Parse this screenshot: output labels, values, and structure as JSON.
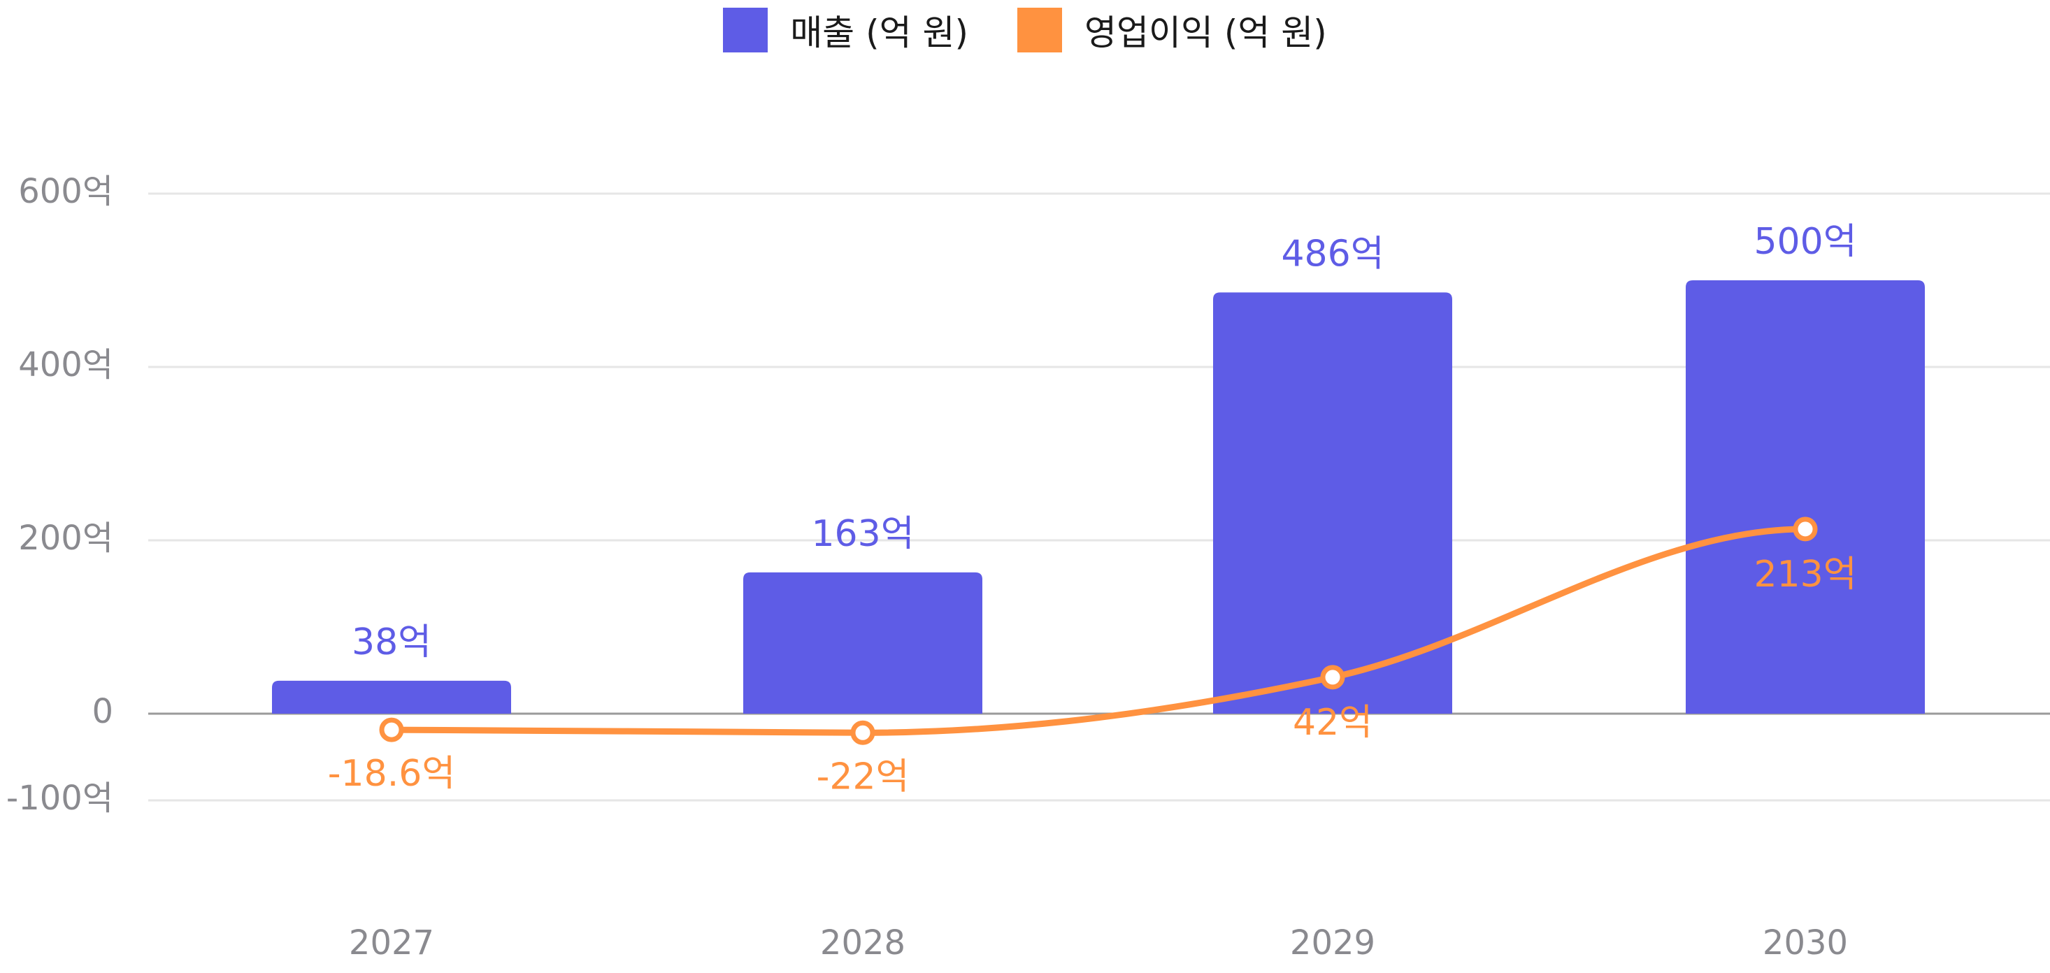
{
  "colors": {
    "revenue": "#5e5ce6",
    "profit": "#ff9240",
    "grid": "#e6e6e6",
    "zero": "#9a9a9a",
    "tick": "#8a8a8f"
  },
  "chart_data": {
    "type": "bar",
    "categories": [
      "2027",
      "2028",
      "2029",
      "2030"
    ],
    "series": [
      {
        "name": "매출 (억 원)",
        "type": "bar",
        "values": [
          38,
          163,
          486,
          500
        ],
        "labels": [
          "38억",
          "163억",
          "486억",
          "500억"
        ]
      },
      {
        "name": "영업이익 (억 원)",
        "type": "line",
        "values": [
          -18.6,
          -22,
          42,
          213
        ],
        "labels": [
          "-18.6억",
          "-22억",
          "42억",
          "213억"
        ]
      }
    ],
    "y_ticks": [
      {
        "value": 600,
        "label": "600억"
      },
      {
        "value": 400,
        "label": "400억"
      },
      {
        "value": 200,
        "label": "200억"
      },
      {
        "value": 0,
        "label": "0"
      },
      {
        "value": -100,
        "label": "-100억"
      }
    ],
    "ylim": [
      -100,
      600
    ],
    "grid": true,
    "legend": "top-center"
  }
}
